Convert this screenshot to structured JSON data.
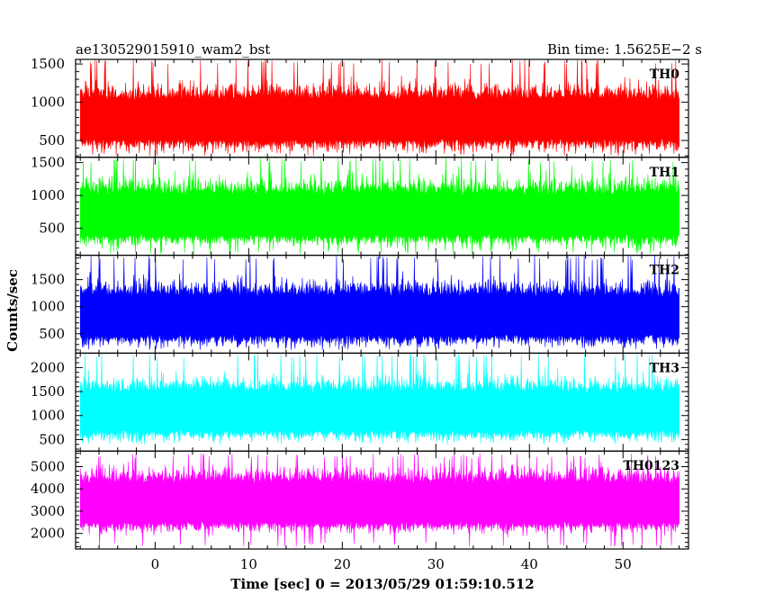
{
  "header": {
    "left": "ae130529015910_wam2_bst",
    "right": "Bin time: 1.5625E−2 s"
  },
  "chart_data": {
    "type": "line",
    "xlabel": "Time [sec] 0 = 2013/05/29 01:59:10.512",
    "ylabel": "Counts/sec",
    "xlim": [
      -8.5,
      57
    ],
    "x_data_range": [
      -8,
      56
    ],
    "x_ticks": [
      0,
      10,
      20,
      30,
      40,
      50
    ],
    "bin_time": 0.015625,
    "series": [
      {
        "name": "TH0",
        "color": "#ff0000",
        "ylim": [
          280,
          1560
        ],
        "y_ticks": [
          500,
          1000,
          1500
        ],
        "level": 750,
        "min": 300,
        "max": 1560
      },
      {
        "name": "TH1",
        "color": "#00ff00",
        "ylim": [
          90,
          1580
        ],
        "y_ticks": [
          500,
          1000,
          1500
        ],
        "level": 680,
        "min": 100,
        "max": 1580
      },
      {
        "name": "TH2",
        "color": "#0000ff",
        "ylim": [
          140,
          1950
        ],
        "y_ticks": [
          500,
          1000,
          1500
        ],
        "level": 800,
        "min": 200,
        "max": 1950
      },
      {
        "name": "TH3",
        "color": "#00ffff",
        "ylim": [
          260,
          2300
        ],
        "y_ticks": [
          500,
          1000,
          1500,
          2000
        ],
        "level": 1050,
        "min": 400,
        "max": 2300
      },
      {
        "name": "TH0123",
        "color": "#ff00ff",
        "ylim": [
          1300,
          5700
        ],
        "y_ticks": [
          2000,
          3000,
          4000,
          5000
        ],
        "level": 3300,
        "min": 1400,
        "max": 5600
      }
    ]
  }
}
